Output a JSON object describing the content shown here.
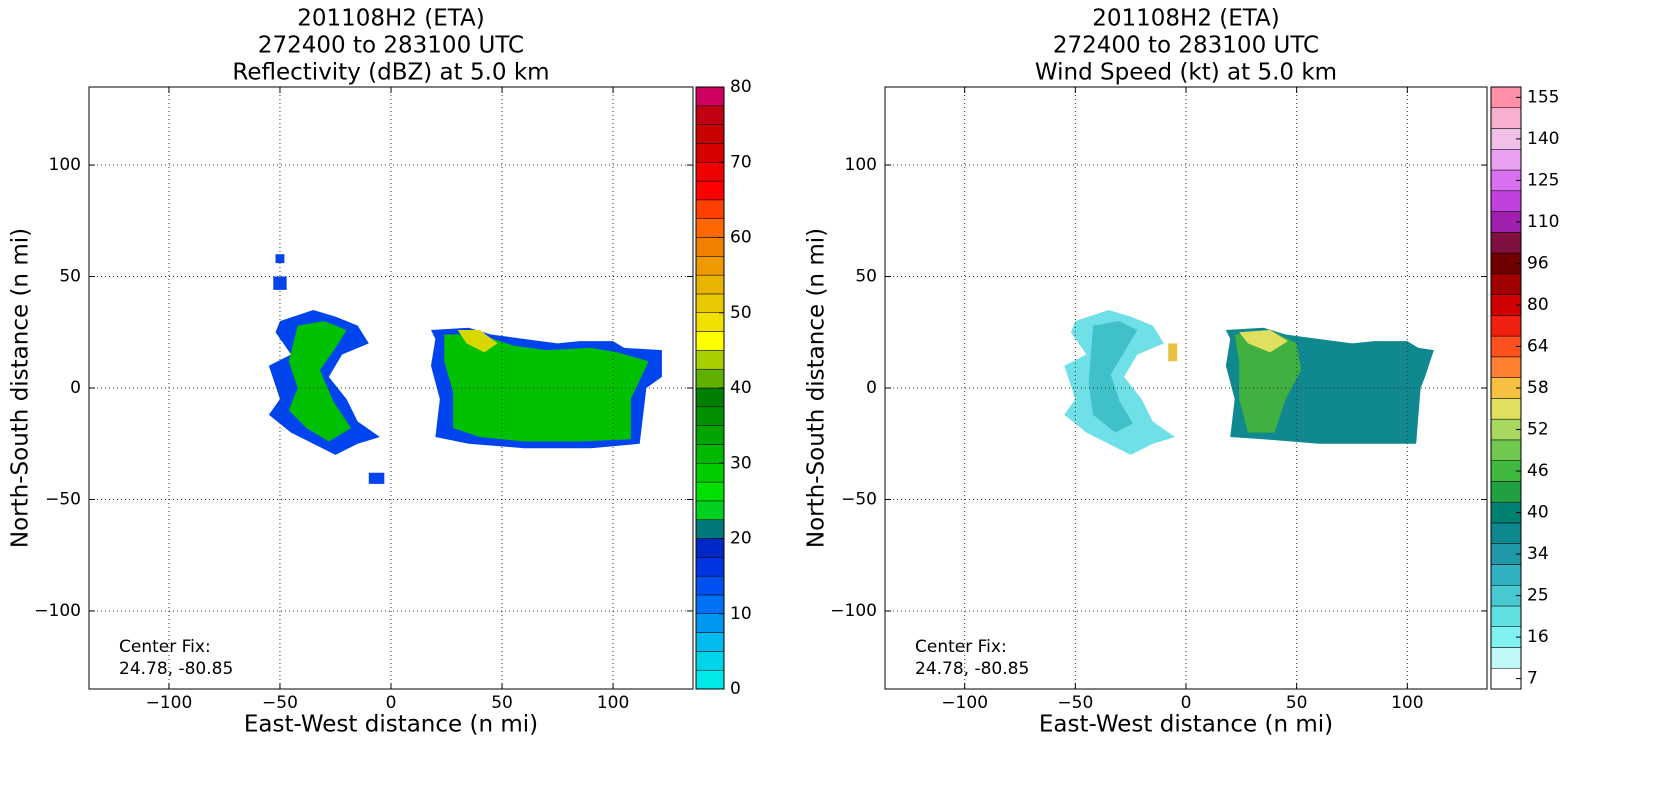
{
  "chart_data": [
    {
      "type": "radar-field",
      "title": [
        "201108H2 (ETA)",
        "272400 to 283100 UTC",
        "Reflectivity (dBZ) at 5.0 km"
      ],
      "xlabel": "East-West distance (n mi)",
      "ylabel": "North-South distance (n mi)",
      "xlim": [
        -136,
        136
      ],
      "ylim": [
        -135,
        135
      ],
      "xticks": [
        {
          "value": -100,
          "label": "−100"
        },
        {
          "value": -50,
          "label": "−50"
        },
        0,
        50,
        100
      ],
      "yticks": [
        {
          "value": -100,
          "label": "−100"
        },
        {
          "value": -50,
          "label": "−50"
        },
        0,
        50,
        100
      ],
      "grid": true,
      "annotation": [
        "Center Fix:",
        "24.78, -80.85"
      ],
      "clim": [
        0,
        80
      ],
      "cticks": [
        0,
        10,
        20,
        30,
        40,
        50,
        60,
        70,
        80
      ],
      "colors": [
        "#00e8e8",
        "#00d4ea",
        "#00bcee",
        "#0098f0",
        "#0070f4",
        "#0050f0",
        "#0034e0",
        "#0028c8",
        "#00787c",
        "#00d020",
        "#00e000",
        "#00cc00",
        "#00b800",
        "#00a400",
        "#009000",
        "#008000",
        "#60b000",
        "#a8d000",
        "#ffff00",
        "#f0e000",
        "#e8c800",
        "#e8b400",
        "#f09800",
        "#f08000",
        "#ff6800",
        "#ff4000",
        "#ff0000",
        "#f00000",
        "#d80000",
        "#c80000",
        "#c00010",
        "#d00060"
      ]
    },
    {
      "type": "radar-field",
      "title": [
        "201108H2 (ETA)",
        "272400 to 283100 UTC",
        "Wind Speed (kt) at 5.0 km"
      ],
      "xlabel": "East-West distance (n mi)",
      "ylabel": "North-South distance (n mi)",
      "xlim": [
        -136,
        136
      ],
      "ylim": [
        -135,
        135
      ],
      "xticks": [
        {
          "value": -100,
          "label": "−100"
        },
        {
          "value": -50,
          "label": "−50"
        },
        0,
        50,
        100
      ],
      "yticks": [
        {
          "value": -100,
          "label": "−100"
        },
        {
          "value": -50,
          "label": "−50"
        },
        0,
        50,
        100
      ],
      "grid": true,
      "annotation": [
        "Center Fix:",
        "24.78, -80.85"
      ],
      "cticks": [
        7,
        16,
        25,
        34,
        40,
        46,
        52,
        58,
        64,
        80,
        96,
        110,
        125,
        140,
        155
      ],
      "colors": [
        "#ffffff",
        "#c0f8f8",
        "#80f0f0",
        "#60e0e0",
        "#48c8d0",
        "#30b0c0",
        "#2098a8",
        "#108890",
        "#008070",
        "#20a040",
        "#40b840",
        "#70c850",
        "#a8d860",
        "#e0e060",
        "#f8c040",
        "#ff8030",
        "#ff5020",
        "#f02010",
        "#d00000",
        "#a00000",
        "#700000",
        "#801040",
        "#a020b0",
        "#c040e0",
        "#d870f0",
        "#e8a0f0",
        "#f0c0e8",
        "#f8b0d0",
        "#ff90a8"
      ]
    }
  ]
}
